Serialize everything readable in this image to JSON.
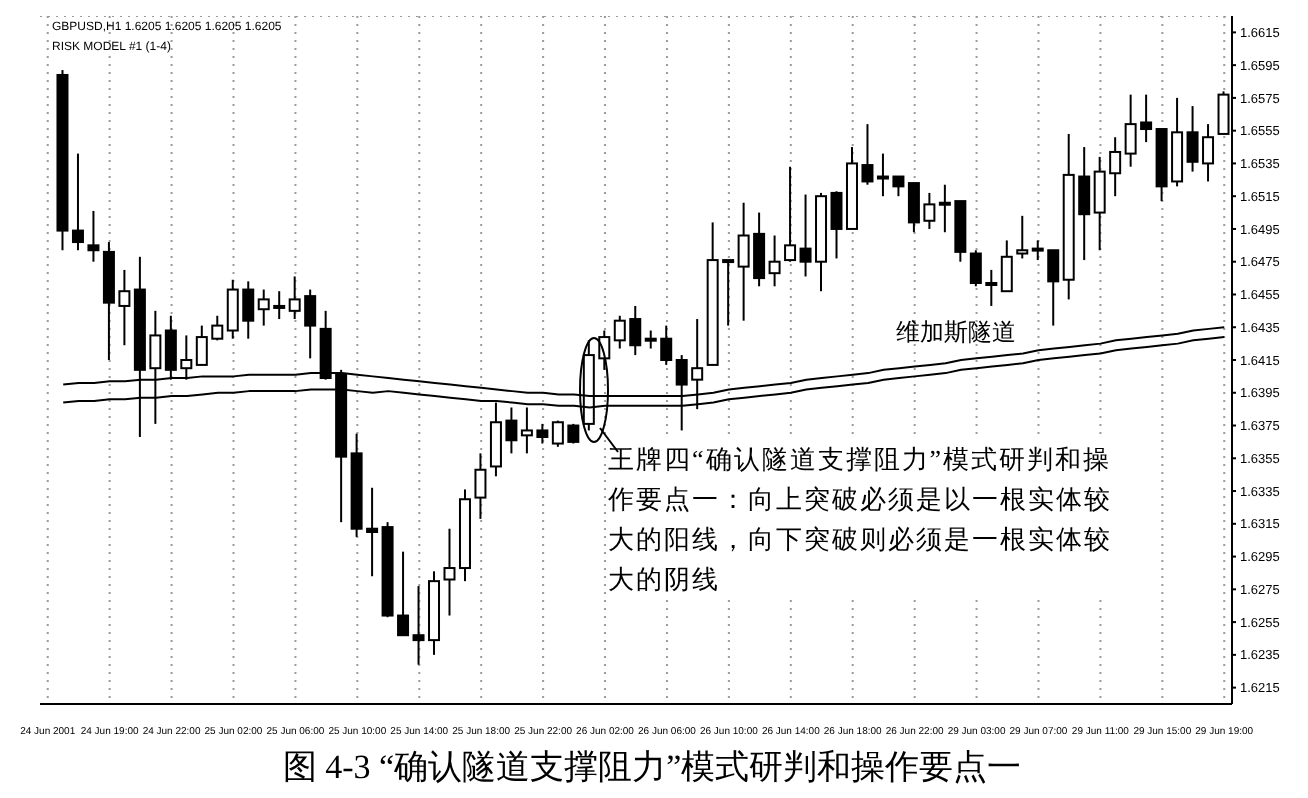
{
  "chart_data": {
    "type": "candlestick",
    "title": "图 4-3 “确认隧道支撑阻力”模式研判和操作要点一",
    "subtitle": "GBPUSD,H1  1.6205 1.6205 1.6205 1.6205",
    "categories": [
      "24 Jun 2001",
      null,
      null,
      null,
      "24 Jun 19:00",
      null,
      null,
      null,
      "24 Jun 22:00",
      null,
      null,
      null,
      "25 Jun 02:00",
      null,
      null,
      null,
      "25 Jun 06:00",
      null,
      null,
      null,
      "25 Jun 10:00",
      null,
      null,
      null,
      "25 Jun 14:00",
      null,
      null,
      null,
      "25 Jun 18:00",
      null,
      null,
      null,
      "25 Jun 22:00",
      null,
      null,
      null,
      "26 Jun 02:00",
      null,
      null,
      null,
      "26 Jun 06:00",
      null,
      null,
      null,
      "26 Jun 10:00",
      null,
      null,
      null,
      "26 Jun 14:00",
      null,
      null,
      null,
      "26 Jun 18:00",
      null,
      null,
      null,
      "26 Jun 22:00",
      null,
      null,
      null,
      "29 Jun 03:00",
      null,
      null,
      null,
      "29 Jun 07:00",
      null,
      null,
      null,
      "29 Jun 11:00",
      null,
      null,
      null,
      "29 Jun 15:00",
      null,
      null,
      null,
      "29 Jun 19:00"
    ],
    "ylim": [
      1.6205,
      1.6625
    ],
    "yticks": [
      1.6615,
      1.6595,
      1.6575,
      1.6555,
      1.6535,
      1.6515,
      1.6495,
      1.6475,
      1.6455,
      1.6435,
      1.6415,
      1.6395,
      1.6375,
      1.6355,
      1.6335,
      1.6315,
      1.6295,
      1.6275,
      1.6255,
      1.6235,
      1.6215
    ],
    "grid": true,
    "series": [
      {
        "type": "line",
        "color": "#000000",
        "values": [
          null,
          1.64,
          1.6401,
          1.6401,
          1.6402,
          1.6402,
          1.6403,
          1.6403,
          1.6404,
          1.6404,
          1.6405,
          1.6405,
          1.6405,
          1.6406,
          1.6406,
          1.6406,
          1.6406,
          1.6407,
          1.6407,
          1.6407,
          1.6406,
          1.6405,
          1.6404,
          1.6403,
          1.6402,
          1.6401,
          1.64,
          1.6399,
          1.6398,
          1.6397,
          1.6396,
          1.6395,
          1.6395,
          1.6394,
          1.6394,
          1.6393,
          1.6393,
          1.6393,
          1.6393,
          1.6393,
          1.6393,
          1.6393,
          1.6394,
          1.6395,
          1.6397,
          1.6398,
          1.6399,
          1.64,
          1.6401,
          1.6403,
          1.6404,
          1.6405,
          1.6406,
          1.6407,
          1.6409,
          1.641,
          1.6411,
          1.6412,
          1.6413,
          1.6415,
          1.6416,
          1.6417,
          1.6418,
          1.6419,
          1.6421,
          1.6422,
          1.6423,
          1.6424,
          1.6425,
          1.6427,
          1.6428,
          1.6429,
          1.643,
          1.6431,
          1.6433,
          1.6434,
          1.6435
        ]
      },
      {
        "type": "line",
        "color": "#000000",
        "values": [
          null,
          1.6389,
          1.639,
          1.639,
          1.6391,
          1.6391,
          1.6392,
          1.6392,
          1.6393,
          1.6393,
          1.6394,
          1.6395,
          1.6395,
          1.6396,
          1.6396,
          1.6396,
          1.6396,
          1.6397,
          1.6397,
          1.6397,
          1.6396,
          1.6395,
          1.6396,
          1.6395,
          1.6394,
          1.6393,
          1.6392,
          1.6391,
          1.639,
          1.639,
          1.6389,
          1.6388,
          1.6388,
          1.6387,
          1.6387,
          1.6386,
          1.6387,
          1.6387,
          1.6387,
          1.6387,
          1.6387,
          1.6387,
          1.6388,
          1.6389,
          1.6391,
          1.6392,
          1.6393,
          1.6394,
          1.6395,
          1.6397,
          1.6398,
          1.6399,
          1.64,
          1.6401,
          1.6403,
          1.6404,
          1.6405,
          1.6406,
          1.6407,
          1.6409,
          1.641,
          1.6411,
          1.6412,
          1.6413,
          1.6415,
          1.6416,
          1.6417,
          1.6418,
          1.6419,
          1.6421,
          1.6422,
          1.6423,
          1.6424,
          1.6425,
          1.6427,
          1.6428,
          1.6429
        ]
      },
      {
        "type": "candlestick",
        "color": "#000000",
        "ohlc": [
          null,
          [
            1.6589,
            1.6592,
            1.6482,
            1.6494
          ],
          [
            1.6494,
            1.6541,
            1.6482,
            1.6487
          ],
          [
            1.6485,
            1.6506,
            1.6475,
            1.6482
          ],
          [
            1.6481,
            1.6487,
            1.6415,
            1.645
          ],
          [
            1.6448,
            1.647,
            1.6424,
            1.6457
          ],
          [
            1.6458,
            1.6478,
            1.6368,
            1.6409
          ],
          [
            1.641,
            1.6445,
            1.6376,
            1.643
          ],
          [
            1.6433,
            1.6442,
            1.6403,
            1.6409
          ],
          [
            1.641,
            1.643,
            1.6403,
            1.6415
          ],
          [
            1.6412,
            1.6436,
            1.6412,
            1.6429
          ],
          [
            1.6428,
            1.6442,
            1.6427,
            1.6436
          ],
          [
            1.6433,
            1.6464,
            1.6428,
            1.6458
          ],
          [
            1.6458,
            1.6463,
            1.6428,
            1.6439
          ],
          [
            1.6446,
            1.6458,
            1.6436,
            1.6452
          ],
          [
            1.6448,
            1.6457,
            1.644,
            1.6448
          ],
          [
            1.6445,
            1.6466,
            1.644,
            1.6452
          ],
          [
            1.6454,
            1.6458,
            1.6416,
            1.6436
          ],
          [
            1.6434,
            1.6445,
            1.6403,
            1.6404
          ],
          [
            1.6406,
            1.6409,
            1.6316,
            1.6356
          ],
          [
            1.6358,
            1.637,
            1.6307,
            1.6312
          ],
          [
            1.6312,
            1.6337,
            1.6283,
            1.631
          ],
          [
            1.6313,
            1.6316,
            1.6258,
            1.6259
          ],
          [
            1.6259,
            1.6298,
            1.6247,
            1.6247
          ],
          [
            1.6247,
            1.6277,
            1.6229,
            1.6244
          ],
          [
            1.6244,
            1.6286,
            1.6235,
            1.628
          ],
          [
            1.6281,
            1.6312,
            1.6259,
            1.6288
          ],
          [
            1.6288,
            1.6336,
            1.628,
            1.633
          ],
          [
            1.6331,
            1.6358,
            1.6318,
            1.6348
          ],
          [
            1.635,
            1.6389,
            1.6344,
            1.6377
          ],
          [
            1.6378,
            1.6386,
            1.6358,
            1.6366
          ],
          [
            1.6369,
            1.6386,
            1.6358,
            1.6372
          ],
          [
            1.6372,
            1.6376,
            1.6364,
            1.6368
          ],
          [
            1.6364,
            1.6378,
            1.6362,
            1.6377
          ],
          [
            1.6375,
            1.6376,
            1.6364,
            1.6365
          ],
          [
            1.6376,
            1.6427,
            1.6372,
            1.6418
          ],
          [
            1.6416,
            1.6433,
            1.6409,
            1.6429
          ],
          [
            1.6427,
            1.6442,
            1.6422,
            1.6439
          ],
          [
            1.644,
            1.6448,
            1.6418,
            1.6424
          ],
          [
            1.6428,
            1.6433,
            1.6422,
            1.6427
          ],
          [
            1.6428,
            1.6436,
            1.6412,
            1.6415
          ],
          [
            1.6415,
            1.6418,
            1.6372,
            1.64
          ],
          [
            1.6403,
            1.644,
            1.6385,
            1.641
          ],
          [
            1.6412,
            1.6499,
            1.6412,
            1.6476
          ],
          [
            1.6476,
            1.6476,
            1.6436,
            1.6475
          ],
          [
            1.6472,
            1.6511,
            1.6439,
            1.6491
          ],
          [
            1.6492,
            1.6505,
            1.646,
            1.6465
          ],
          [
            1.6468,
            1.6491,
            1.646,
            1.6475
          ],
          [
            1.6476,
            1.6533,
            1.6475,
            1.6485
          ],
          [
            1.6483,
            1.6516,
            1.6466,
            1.6475
          ],
          [
            1.6475,
            1.6517,
            1.6457,
            1.6515
          ],
          [
            1.6517,
            1.6518,
            1.6477,
            1.6495
          ],
          [
            1.6495,
            1.6545,
            1.6495,
            1.6535
          ],
          [
            1.6534,
            1.6559,
            1.6522,
            1.6524
          ],
          [
            1.6527,
            1.6541,
            1.6515,
            1.6526
          ],
          [
            1.6527,
            1.6527,
            1.6515,
            1.6521
          ],
          [
            1.6523,
            1.6523,
            1.6493,
            1.6499
          ],
          [
            1.65,
            1.6517,
            1.6495,
            1.651
          ],
          [
            1.6511,
            1.6522,
            1.6493,
            1.651
          ],
          [
            1.6512,
            1.6512,
            1.6475,
            1.6481
          ],
          [
            1.648,
            1.6482,
            1.646,
            1.6462
          ],
          [
            1.6462,
            1.647,
            1.6448,
            1.6461
          ],
          [
            1.6457,
            1.6488,
            1.6457,
            1.6478
          ],
          [
            1.648,
            1.6503,
            1.6477,
            1.6482
          ],
          [
            1.6482,
            1.6488,
            1.6476,
            1.6483
          ],
          [
            1.6482,
            1.6482,
            1.6436,
            1.6463
          ],
          [
            1.6464,
            1.6553,
            1.6452,
            1.6528
          ],
          [
            1.6527,
            1.6545,
            1.6476,
            1.6504
          ],
          [
            1.6505,
            1.6539,
            1.6482,
            1.653
          ],
          [
            1.6529,
            1.6551,
            1.6515,
            1.6542
          ],
          [
            1.6541,
            1.6577,
            1.6533,
            1.6559
          ],
          [
            1.656,
            1.6577,
            1.6548,
            1.6556
          ],
          [
            1.6556,
            1.6556,
            1.6512,
            1.6521
          ],
          [
            1.6524,
            1.6575,
            1.6521,
            1.6554
          ],
          [
            1.6554,
            1.657,
            1.653,
            1.6536
          ],
          [
            1.6535,
            1.6559,
            1.6524,
            1.6551
          ],
          [
            1.6553,
            1.6579,
            1.6553,
            1.6577
          ]
        ]
      }
    ],
    "annotations": [
      "RISK MODEL #1 (1-4)",
      "维加斯隧道",
      "王牌四“确认隧道支撑阻力”模式研判和操作要点一：向上突破必须是以一根实体较大的阳线，向下突破则必须是一根实体较大的阴线"
    ]
  }
}
